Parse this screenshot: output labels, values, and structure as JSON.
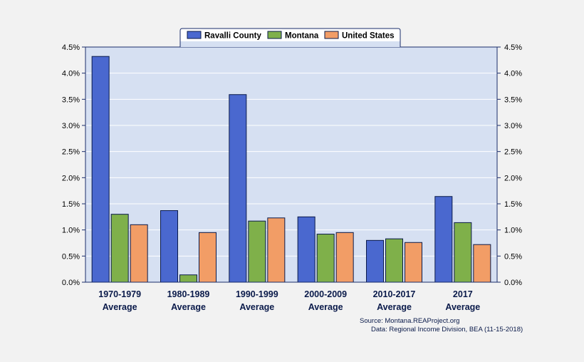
{
  "chart_data": {
    "type": "bar",
    "categories": [
      [
        "1970-1979",
        "Average"
      ],
      [
        "1980-1989",
        "Average"
      ],
      [
        "1990-1999",
        "Average"
      ],
      [
        "2000-2009",
        "Average"
      ],
      [
        "2010-2017",
        "Average"
      ],
      [
        "2017",
        "Average"
      ]
    ],
    "series": [
      {
        "name": "Ravalli County",
        "color": "#4a68cf",
        "values": [
          4.32,
          1.37,
          3.59,
          1.25,
          0.8,
          1.64
        ]
      },
      {
        "name": "Montana",
        "color": "#7fb04a",
        "values": [
          1.3,
          0.14,
          1.17,
          0.92,
          0.83,
          1.14
        ]
      },
      {
        "name": "United States",
        "color": "#f29d66",
        "values": [
          1.1,
          0.95,
          1.23,
          0.95,
          0.76,
          0.72
        ]
      }
    ],
    "ylim": [
      0,
      4.5
    ],
    "yticks": [
      "0.0%",
      "0.5%",
      "1.0%",
      "1.5%",
      "2.0%",
      "2.5%",
      "3.0%",
      "3.5%",
      "4.0%",
      "4.5%"
    ],
    "grid": true,
    "legend": "top-center",
    "source": [
      "Source: Montana.REAProject.org",
      "Data: Regional Income Division, BEA (11-15-2018)"
    ]
  }
}
